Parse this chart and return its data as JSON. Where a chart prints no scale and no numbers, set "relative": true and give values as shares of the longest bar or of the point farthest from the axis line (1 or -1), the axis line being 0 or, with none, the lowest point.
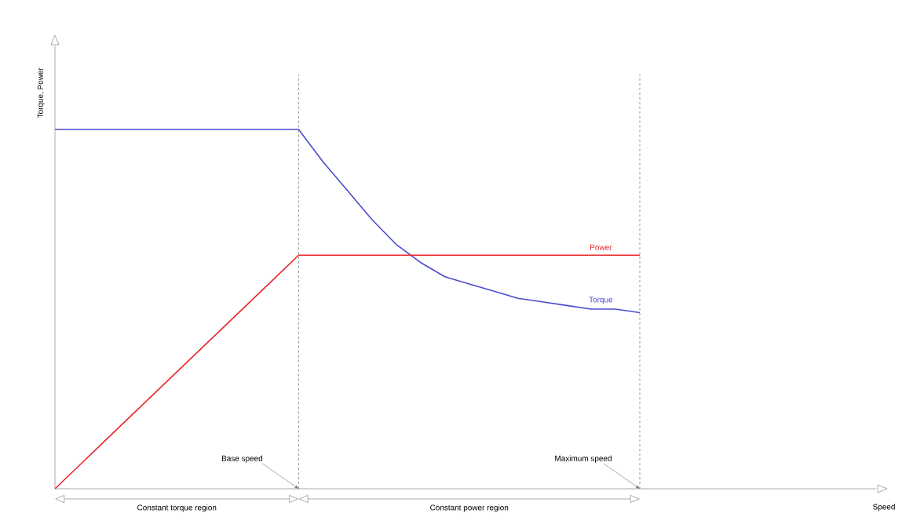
{
  "chart_data": {
    "type": "line",
    "relative": true,
    "ylabel": "Torque, Power",
    "marker": "none",
    "line_style": "solid",
    "categories": [
      null,
      null,
      null,
      null,
      null,
      null,
      null,
      null,
      null,
      null,
      null,
      null,
      null,
      null,
      null,
      null,
      null,
      null,
      null,
      null,
      null,
      null,
      null,
      null,
      null
    ],
    "series": [
      {
        "name": "Torque",
        "color": "#4b4bd2",
        "values": [
          1,
          1,
          1,
          1,
          1,
          1,
          1,
          1,
          1,
          1,
          1,
          0.91,
          0.83,
          0.75,
          0.68,
          0.63,
          0.59,
          0.57,
          0.55,
          0.53,
          0.52,
          0.51,
          0.5,
          0.5,
          0.49
        ]
      },
      {
        "name": "Power",
        "color": "#e8262b",
        "values": [
          0,
          0.065,
          0.13,
          0.195,
          0.26,
          0.325,
          0.39,
          0.455,
          0.52,
          0.585,
          0.65,
          0.65,
          0.65,
          0.65,
          0.65,
          0.65,
          0.65,
          0.65,
          0.65,
          0.65,
          0.65,
          0.65,
          0.65,
          0.65,
          0.65
        ]
      }
    ],
    "annotations": [
      "Base speed",
      "Maximum speed",
      "Constant torque region",
      "Constant power region",
      "Speed"
    ]
  }
}
